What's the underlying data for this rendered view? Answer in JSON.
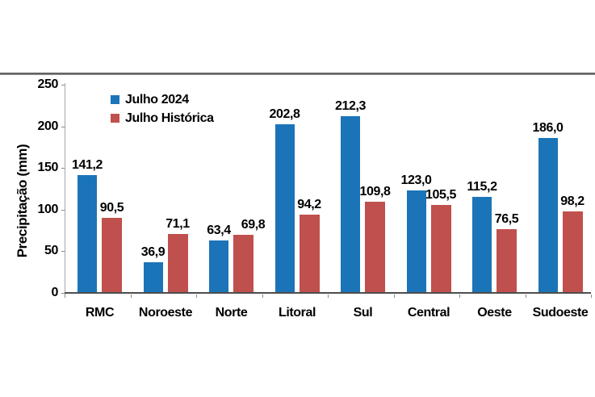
{
  "colors": {
    "background": "#FFFFFF",
    "bar_blue": "#1B74B8",
    "bar_red": "#C0504D",
    "axis_line": "#A6A6A6",
    "baseline": "#4D4D4D",
    "tick": "#8C8C8C",
    "top_rule": "#6E6E6E",
    "text": "#000000"
  },
  "chart_data": {
    "type": "bar",
    "title": "",
    "xlabel": "",
    "ylabel": "Precipitação (mm)",
    "categories": [
      "RMC",
      "Noroeste",
      "Norte",
      "Litoral",
      "Sul",
      "Central",
      "Oeste",
      "Sudoeste"
    ],
    "series": [
      {
        "name": "Julho 2024",
        "color": "#1B74B8",
        "values": [
          141.2,
          36.9,
          63.4,
          202.8,
          212.3,
          123.0,
          115.2,
          186.0
        ],
        "labels": [
          "141,2",
          "36,9",
          "63,4",
          "202,8",
          "212,3",
          "123,0",
          "115,2",
          "186,0"
        ]
      },
      {
        "name": "Julho Histórica",
        "color": "#C0504D",
        "values": [
          90.5,
          71.1,
          69.8,
          94.2,
          109.8,
          105.5,
          76.5,
          98.2
        ],
        "labels": [
          "90,5",
          "71,1",
          "69,8",
          "94,2",
          "109,8",
          "105,5",
          "76,5",
          "98,2"
        ]
      }
    ],
    "ylim": [
      0,
      250
    ],
    "yticks": [
      0,
      50,
      100,
      150,
      200,
      250
    ],
    "grid": false,
    "legend_position": "top-left-inside",
    "value_labels": true,
    "decimal_separator": ","
  }
}
